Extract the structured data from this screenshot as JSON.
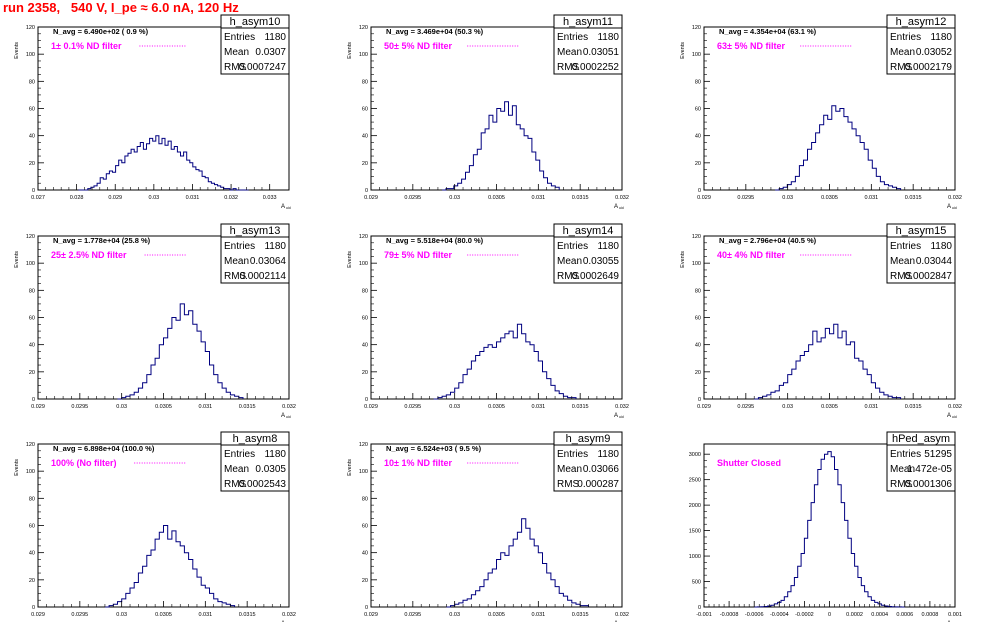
{
  "run_title": "run 2358,   540 V, I_pe ≈ 6.0 nA, 120 Hz",
  "colors": {
    "histogram": "#000080",
    "annotation": "#ff00ff",
    "title": "#ff0000",
    "frame": "#000000"
  },
  "stat_labels": {
    "entries": "Entries",
    "mean": "Mean",
    "rms": "RMS"
  },
  "axis_label_y": "Events",
  "axis_label_x": "A_uid",
  "chart_data": [
    {
      "type": "histogram",
      "name": "h_asym10",
      "stats": {
        "entries": "1180",
        "mean": "0.0307",
        "rms": "0.0007247"
      },
      "navg": "N_avg = 6.490e+02 ( 0.9 %)",
      "filter": "1± 0.1% ND filter",
      "xlabel": "A_uid",
      "ylabel": "Events",
      "xlim": [
        0.027,
        0.0335
      ],
      "ylim": [
        0,
        120
      ],
      "xticks": [
        "0.027",
        "0.028",
        "0.029",
        "0.03",
        "0.031",
        "0.032",
        "0.033"
      ],
      "xtick_values": [
        0.027,
        0.028,
        0.029,
        0.03,
        0.031,
        0.032,
        0.033
      ],
      "yticks": [
        0,
        20,
        40,
        60,
        80,
        100,
        120
      ],
      "bins": {
        "lo": 0.02805,
        "hi": 0.03245,
        "values": [
          0,
          0,
          0,
          1,
          2,
          3,
          5,
          9,
          8,
          12,
          14,
          13,
          18,
          22,
          20,
          25,
          27,
          30,
          28,
          32,
          35,
          30,
          34,
          38,
          36,
          40,
          34,
          38,
          33,
          36,
          30,
          32,
          28,
          25,
          28,
          22,
          20,
          17,
          15,
          14,
          10,
          9,
          6,
          5,
          4,
          3,
          2,
          1,
          1,
          0,
          1,
          0,
          0,
          0,
          0
        ]
      }
    },
    {
      "type": "histogram",
      "name": "h_asym11",
      "stats": {
        "entries": "1180",
        "mean": "0.03051",
        "rms": "0.0002252"
      },
      "navg": "N_avg = 3.469e+04 (50.3 %)",
      "filter": "50± 5% ND filter",
      "xlabel": "A_uid",
      "ylabel": "Events",
      "xlim": [
        0.029,
        0.032
      ],
      "ylim": [
        0,
        120
      ],
      "xticks": [
        "0.029",
        "0.0295",
        "0.03",
        "0.0305",
        "0.031",
        "0.0315",
        "0.032"
      ],
      "xtick_values": [
        0.029,
        0.0295,
        0.03,
        0.0305,
        0.031,
        0.0315,
        0.032
      ],
      "yticks": [
        0,
        20,
        40,
        60,
        80,
        100,
        120
      ],
      "bins": {
        "lo": 0.02985,
        "hi": 0.03125,
        "values": [
          0,
          1,
          1,
          3,
          5,
          8,
          13,
          18,
          26,
          30,
          42,
          45,
          55,
          50,
          60,
          58,
          65,
          55,
          62,
          48,
          45,
          40,
          38,
          28,
          22,
          14,
          9,
          5,
          3,
          2
        ]
      }
    },
    {
      "type": "histogram",
      "name": "h_asym12",
      "stats": {
        "entries": "1180",
        "mean": "0.03052",
        "rms": "0.0002179"
      },
      "navg": "N_avg = 4.354e+04 (63.1 %)",
      "filter": "63± 5% ND filter",
      "xlabel": "A_uid",
      "ylabel": "Events",
      "xlim": [
        0.029,
        0.032
      ],
      "ylim": [
        0,
        120
      ],
      "xticks": [
        "0.029",
        "0.0295",
        "0.03",
        "0.0305",
        "0.031",
        "0.0315",
        "0.032"
      ],
      "xtick_values": [
        0.029,
        0.0295,
        0.03,
        0.0305,
        0.031,
        0.0315,
        0.032
      ],
      "yticks": [
        0,
        20,
        40,
        60,
        80,
        100,
        120
      ],
      "bins": {
        "lo": 0.02985,
        "hi": 0.03135,
        "values": [
          0,
          1,
          2,
          4,
          6,
          10,
          18,
          22,
          30,
          35,
          42,
          48,
          55,
          52,
          62,
          58,
          60,
          54,
          50,
          45,
          40,
          35,
          30,
          22,
          16,
          10,
          6,
          4,
          3,
          2,
          1
        ]
      }
    },
    {
      "type": "histogram",
      "name": "h_asym13",
      "stats": {
        "entries": "1180",
        "mean": "0.03064",
        "rms": "0.0002114"
      },
      "navg": "N_avg = 1.778e+04 (25.8 %)",
      "filter": "25± 2.5% ND filter",
      "xlabel": "A_uid",
      "ylabel": "Events",
      "xlim": [
        0.029,
        0.032
      ],
      "ylim": [
        0,
        120
      ],
      "xticks": [
        "0.029",
        "0.0295",
        "0.03",
        "0.0305",
        "0.031",
        "0.0315",
        "0.032"
      ],
      "xtick_values": [
        0.029,
        0.0295,
        0.03,
        0.0305,
        0.031,
        0.0315,
        0.032
      ],
      "yticks": [
        0,
        20,
        40,
        60,
        80,
        100,
        120
      ],
      "bins": {
        "lo": 0.02995,
        "hi": 0.03145,
        "values": [
          0,
          1,
          2,
          3,
          5,
          8,
          12,
          18,
          25,
          30,
          40,
          45,
          52,
          60,
          58,
          70,
          62,
          65,
          55,
          50,
          42,
          35,
          25,
          18,
          12,
          8,
          5,
          3,
          2,
          1
        ]
      }
    },
    {
      "type": "histogram",
      "name": "h_asym14",
      "stats": {
        "entries": "1180",
        "mean": "0.03055",
        "rms": "0.0002649"
      },
      "navg": "N_avg = 5.518e+04 (80.0 %)",
      "filter": "79± 5% ND filter",
      "xlabel": "A_uid",
      "ylabel": "Events",
      "xlim": [
        0.029,
        0.032
      ],
      "ylim": [
        0,
        120
      ],
      "xticks": [
        "0.029",
        "0.0295",
        "0.03",
        "0.0305",
        "0.031",
        "0.0315",
        "0.032"
      ],
      "xtick_values": [
        0.029,
        0.0295,
        0.03,
        0.0305,
        0.031,
        0.0315,
        0.032
      ],
      "yticks": [
        0,
        20,
        40,
        60,
        80,
        100,
        120
      ],
      "bins": {
        "lo": 0.02975,
        "hi": 0.03145,
        "values": [
          0,
          1,
          2,
          3,
          5,
          8,
          12,
          18,
          22,
          28,
          32,
          35,
          38,
          40,
          38,
          42,
          45,
          48,
          50,
          45,
          55,
          48,
          42,
          40,
          35,
          28,
          20,
          15,
          10,
          6,
          4,
          2,
          1,
          1
        ]
      }
    },
    {
      "type": "histogram",
      "name": "h_asym15",
      "stats": {
        "entries": "1180",
        "mean": "0.03044",
        "rms": "0.0002847"
      },
      "navg": "N_avg = 2.796e+04 (40.5 %)",
      "filter": "40± 4% ND filter",
      "xlabel": "A_uid",
      "ylabel": "Events",
      "xlim": [
        0.029,
        0.032
      ],
      "ylim": [
        0,
        120
      ],
      "xticks": [
        "0.029",
        "0.0295",
        "0.03",
        "0.0305",
        "0.031",
        "0.0315",
        "0.032"
      ],
      "xtick_values": [
        0.029,
        0.0295,
        0.03,
        0.0305,
        0.031,
        0.0315,
        0.032
      ],
      "yticks": [
        0,
        20,
        40,
        60,
        80,
        100,
        120
      ],
      "bins": {
        "lo": 0.0296,
        "hi": 0.03135,
        "values": [
          0,
          1,
          2,
          3,
          5,
          6,
          10,
          12,
          18,
          22,
          28,
          32,
          35,
          40,
          50,
          42,
          45,
          52,
          48,
          55,
          45,
          50,
          40,
          42,
          30,
          28,
          22,
          18,
          12,
          8,
          5,
          3,
          2,
          1,
          1
        ]
      }
    },
    {
      "type": "histogram",
      "name": "h_asym8",
      "stats": {
        "entries": "1180",
        "mean": "0.0305",
        "rms": "0.0002543"
      },
      "navg": "N_avg = 6.898e+04 (100.0 %)",
      "filter": "100% (No filter)",
      "xlabel": "A_uid",
      "ylabel": "Events",
      "xlim": [
        0.029,
        0.032
      ],
      "ylim": [
        0,
        120
      ],
      "xticks": [
        "0.029",
        "0.0295",
        "0.03",
        "0.0305",
        "0.031",
        "0.0315",
        "0.032"
      ],
      "xtick_values": [
        0.029,
        0.0295,
        0.03,
        0.0305,
        0.031,
        0.0315,
        0.032
      ],
      "yticks": [
        0,
        20,
        40,
        60,
        80,
        100,
        120
      ],
      "bins": {
        "lo": 0.0298,
        "hi": 0.03135,
        "values": [
          0,
          1,
          2,
          4,
          6,
          10,
          14,
          18,
          25,
          30,
          38,
          42,
          50,
          55,
          60,
          50,
          56,
          48,
          45,
          40,
          35,
          28,
          22,
          16,
          14,
          10,
          6,
          4,
          3,
          2,
          1
        ]
      }
    },
    {
      "type": "histogram",
      "name": "h_asym9",
      "stats": {
        "entries": "1180",
        "mean": "0.03066",
        "rms": "0.000287"
      },
      "navg": "N_avg = 6.524e+03 ( 9.5 %)",
      "filter": "10± 1% ND filter",
      "xlabel": "A_uid",
      "ylabel": "Events",
      "xlim": [
        0.029,
        0.032
      ],
      "ylim": [
        0,
        120
      ],
      "xticks": [
        "0.029",
        "0.0295",
        "0.03",
        "0.0305",
        "0.031",
        "0.0315",
        "0.032"
      ],
      "xtick_values": [
        0.029,
        0.0295,
        0.03,
        0.0305,
        0.031,
        0.0315,
        0.032
      ],
      "yticks": [
        0,
        20,
        40,
        60,
        80,
        100,
        120
      ],
      "bins": {
        "lo": 0.0299,
        "hi": 0.0316,
        "values": [
          0,
          1,
          2,
          3,
          5,
          6,
          9,
          12,
          15,
          20,
          25,
          28,
          35,
          40,
          38,
          45,
          50,
          55,
          65,
          58,
          50,
          45,
          40,
          32,
          25,
          20,
          15,
          10,
          8,
          5,
          3,
          2,
          1,
          1
        ]
      }
    },
    {
      "type": "histogram",
      "name": "hPed_asym",
      "stats": {
        "entries": "51295",
        "mean": "1.472e-05",
        "rms": "0.0001306"
      },
      "navg": "",
      "filter": "Shutter Closed",
      "xlabel": "A_uid",
      "ylabel": "",
      "xlim": [
        -0.001,
        0.001
      ],
      "ylim": [
        0,
        3200
      ],
      "xticks": [
        "-0.001",
        "-0.0008",
        "-0.0006",
        "-0.0004",
        "-0.0002",
        "0",
        "0.0002",
        "0.0004",
        "0.0006",
        "0.0008",
        "0.001"
      ],
      "xtick_values": [
        -0.001,
        -0.0008,
        -0.0006,
        -0.0004,
        -0.0002,
        0,
        0.0002,
        0.0004,
        0.0006,
        0.0008,
        0.001
      ],
      "yticks": [
        0,
        500,
        1000,
        1500,
        2000,
        2500,
        3000
      ],
      "bins": {
        "lo": -0.0006,
        "hi": 0.0006,
        "values": [
          0,
          2,
          5,
          10,
          20,
          35,
          60,
          90,
          130,
          200,
          300,
          420,
          580,
          800,
          1050,
          1350,
          1700,
          2050,
          2400,
          2700,
          2900,
          3000,
          3050,
          2950,
          2700,
          2400,
          2050,
          1700,
          1350,
          1050,
          800,
          580,
          420,
          300,
          200,
          130,
          90,
          60,
          35,
          20,
          10,
          5,
          2,
          1,
          0
        ]
      }
    }
  ]
}
